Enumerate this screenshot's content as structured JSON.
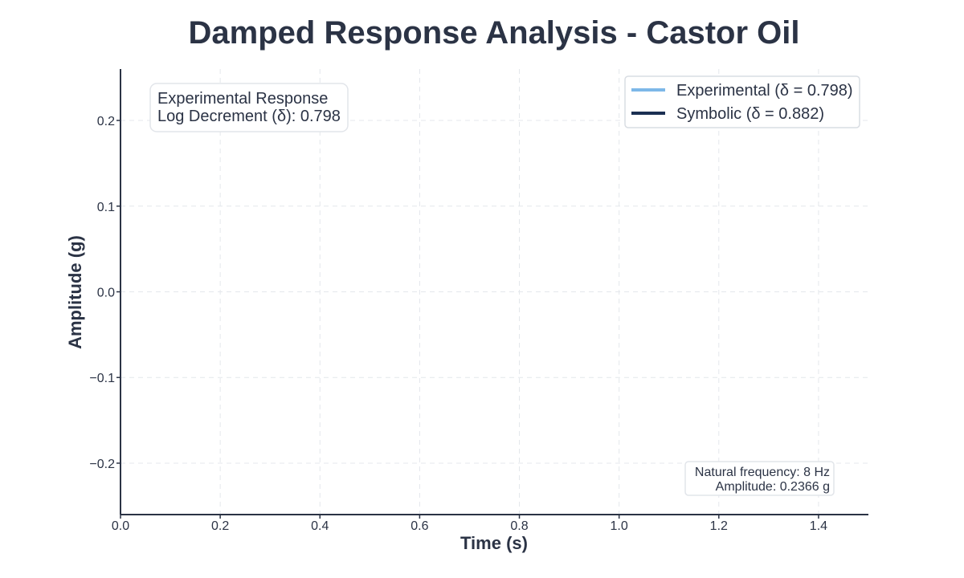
{
  "chart_data": {
    "type": "line",
    "title": "Damped Response Analysis - Castor Oil",
    "xlabel": "Time (s)",
    "ylabel": "Amplitude (g)",
    "xlim": [
      0.0,
      1.5
    ],
    "ylim": [
      -0.26,
      0.26
    ],
    "x_ticks": [
      "0.0",
      "0.2",
      "0.4",
      "0.6",
      "0.8",
      "1.0",
      "1.2",
      "1.4"
    ],
    "y_ticks": [
      "0.2",
      "0.1",
      "0.0",
      "−0.1",
      "−0.2"
    ],
    "grid": true,
    "legend_placement": "top-right",
    "series": [
      {
        "name": "Experimental (δ = 0.798)",
        "color": "#7db8e8",
        "values": []
      },
      {
        "name": "Symbolic (δ = 0.882)",
        "color": "#1b2f52",
        "values": []
      }
    ],
    "annotations": {
      "experimental_box": {
        "line1": "Experimental Response",
        "line2": "Log Decrement (δ): 0.798"
      },
      "info_box": {
        "line1": "Natural frequency: 8 Hz",
        "line2": "Amplitude: 0.2366 g"
      }
    }
  }
}
